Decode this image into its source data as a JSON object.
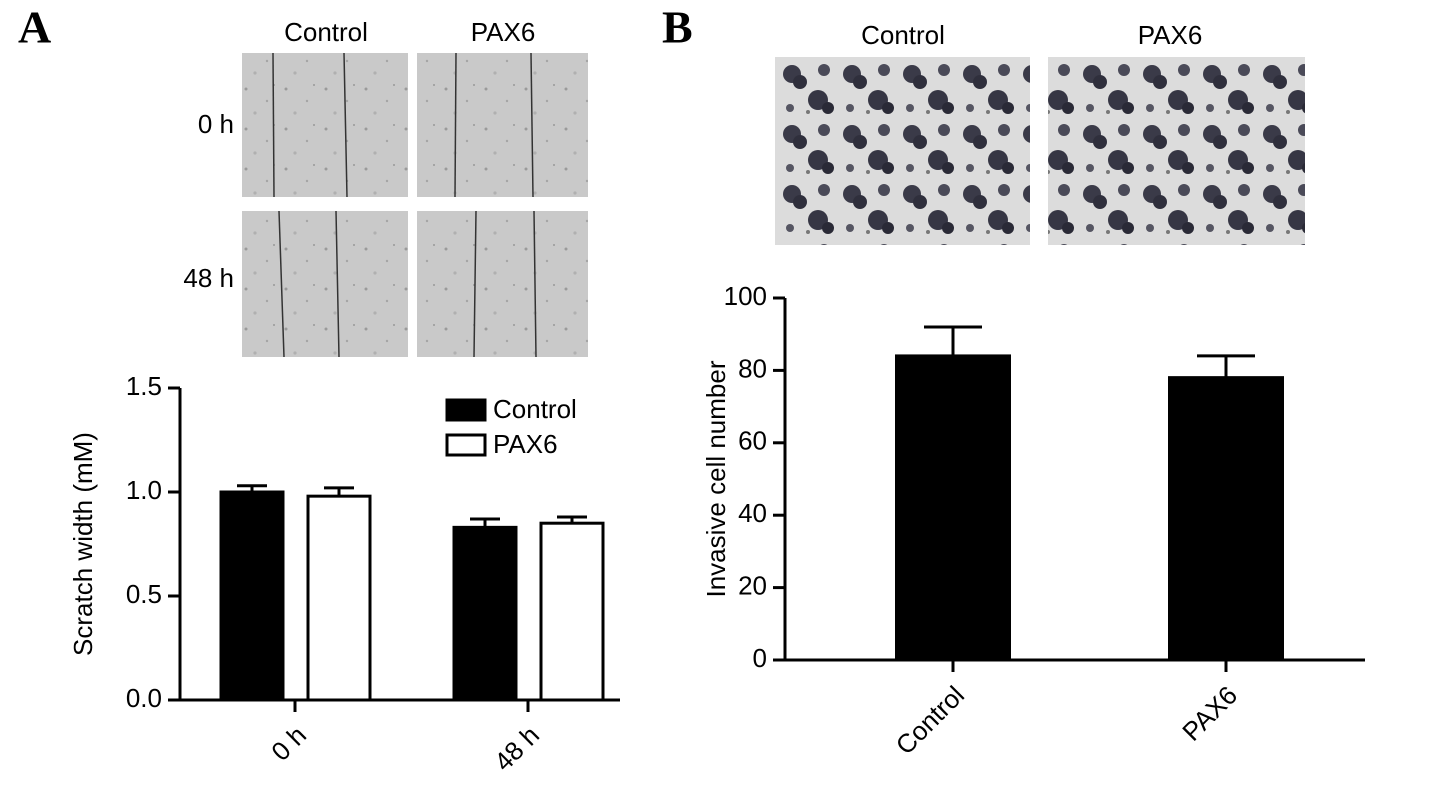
{
  "panels": [
    {
      "label": "A",
      "image_columns": [
        "Control",
        "PAX6"
      ],
      "image_rows": [
        "0 h",
        "48 h"
      ]
    },
    {
      "label": "B",
      "image_columns": [
        "Control",
        "PAX6"
      ]
    }
  ],
  "chart_data": [
    {
      "type": "bar",
      "ylabel": "Scratch width (mM)",
      "categories": [
        "0 h",
        "48 h"
      ],
      "series": [
        {
          "name": "Control",
          "color": "#000000",
          "values": [
            1.0,
            0.83
          ],
          "errors": [
            0.03,
            0.04
          ]
        },
        {
          "name": "PAX6",
          "color": "#ffffff",
          "values": [
            0.98,
            0.85
          ],
          "errors": [
            0.04,
            0.03
          ]
        }
      ],
      "ylim": [
        0,
        1.5
      ],
      "yticks": [
        {
          "value": 0,
          "label": "0.0"
        },
        {
          "value": 0.5,
          "label": "0.5"
        },
        {
          "value": 1,
          "label": "1.0"
        },
        {
          "value": 1.5,
          "label": "1.5"
        }
      ],
      "legend": "top-right",
      "grid": false
    },
    {
      "type": "bar",
      "ylabel": "Invasive cell number",
      "categories": [
        "Control",
        "PAX6"
      ],
      "values": [
        84,
        78
      ],
      "errors": [
        8,
        6
      ],
      "color": "#000000",
      "ylim": [
        0,
        100
      ],
      "yticks": [
        0,
        20,
        40,
        60,
        80,
        100
      ],
      "grid": false
    }
  ]
}
